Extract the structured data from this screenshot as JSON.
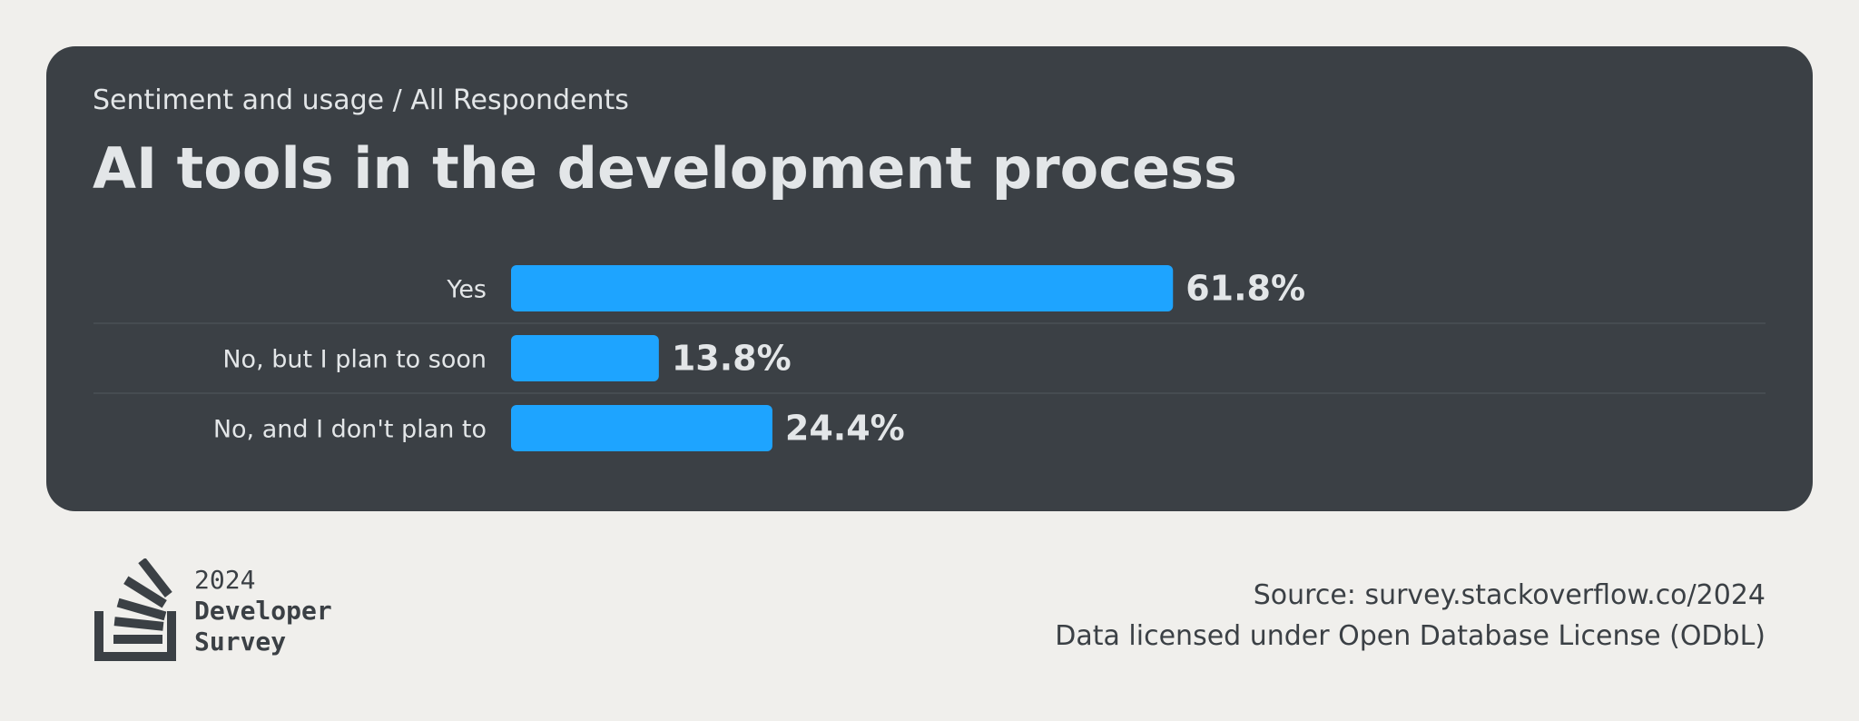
{
  "header": {
    "breadcrumb": "Sentiment and usage / All Respondents",
    "title": "AI tools in the development process"
  },
  "chart_data": {
    "type": "bar",
    "orientation": "horizontal",
    "categories": [
      "Yes",
      "No, but I plan to soon",
      "No, and I don't plan to"
    ],
    "values": [
      61.8,
      13.8,
      24.4
    ],
    "value_labels": [
      "61.8%",
      "13.8%",
      "24.4%"
    ],
    "unit": "%",
    "xlim": [
      0,
      100
    ],
    "grid": false,
    "bar_color": "#1ea4ff",
    "separator_color": "#464c51"
  },
  "footer": {
    "logo": {
      "year": "2024",
      "line1": "Developer",
      "line2": "Survey",
      "icon": "stack-overflow-logo-icon",
      "color": "#3b4045"
    },
    "source": "Source: survey.stackoverflow.co/2024",
    "license": "Data licensed under Open Database License (ODbL)"
  },
  "colors": {
    "page_background": "#f0efec",
    "card_background": "#3b4045",
    "card_text": "#e3e6e8",
    "footer_text": "#3b4045"
  }
}
